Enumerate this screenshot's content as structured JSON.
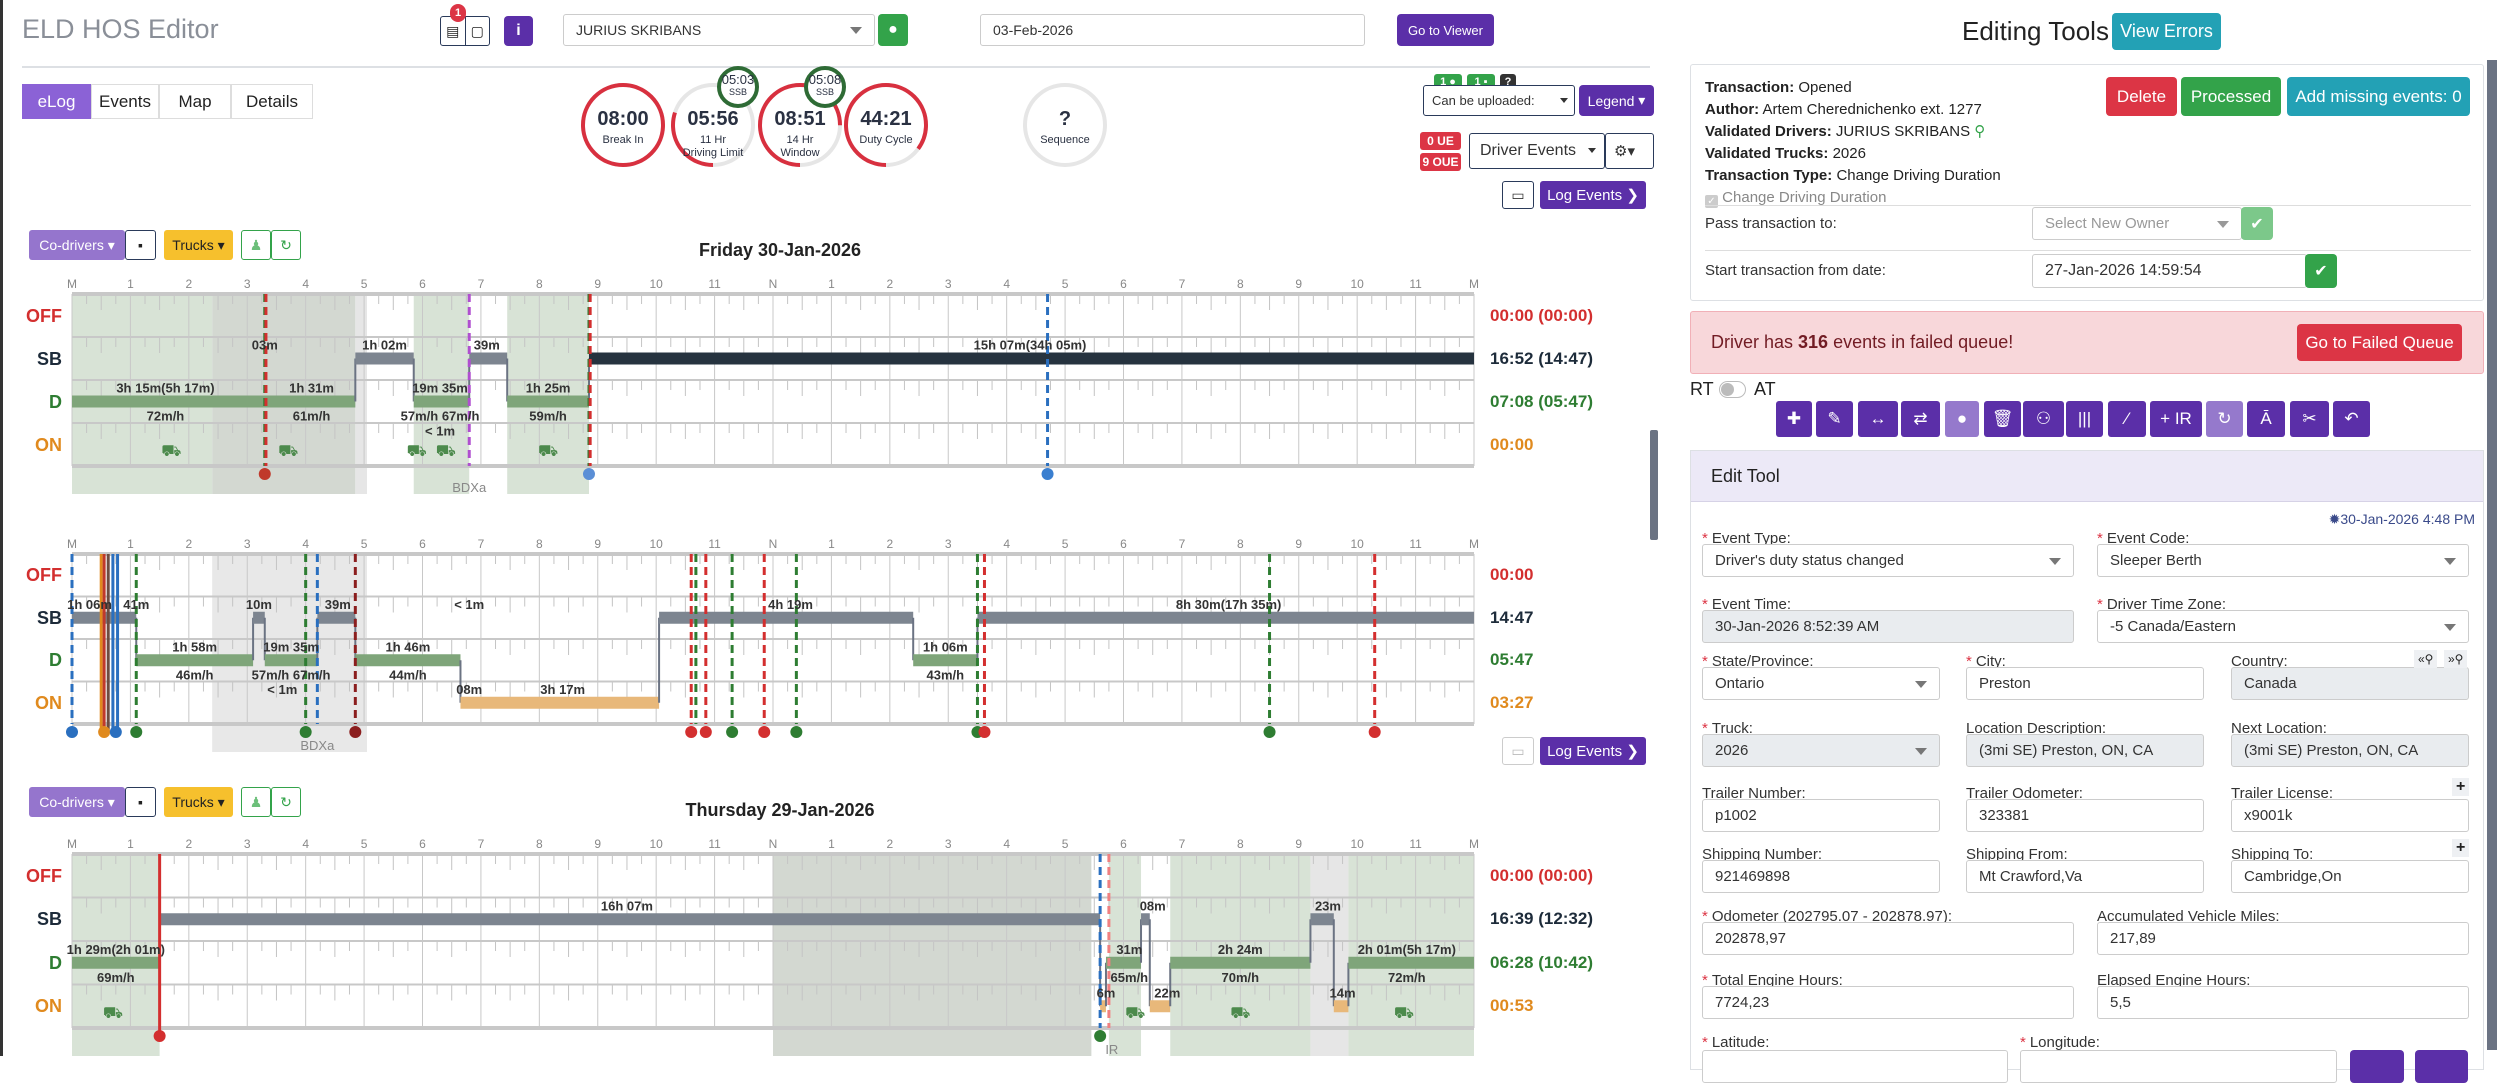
{
  "header": {
    "title": "ELD HOS Editor",
    "notif_count": "1",
    "info_icon": "i",
    "driver": "JURIUS SKRIBANS",
    "date": "03-Feb-2026",
    "go_to_viewer": "Go to Viewer"
  },
  "tabs": [
    {
      "label": "eLog",
      "active": true
    },
    {
      "label": "Events"
    },
    {
      "label": "Map"
    },
    {
      "label": "Details"
    }
  ],
  "clocks": [
    {
      "value": "08:00",
      "label": "Break In",
      "progress": 1.0
    },
    {
      "value": "05:56",
      "label": "11 Hr\nDriving Limit",
      "progress": 0.3,
      "ssb": "05:03",
      "ssb_label": "SSB"
    },
    {
      "value": "08:51",
      "label": "14 Hr\nWindow",
      "progress": 0.75,
      "ssb": "05:08",
      "ssb_label": "SSB"
    },
    {
      "value": "44:21",
      "label": "Duty Cycle",
      "progress": 0.85
    },
    {
      "value": "?",
      "label": "Sequence",
      "progress": 0
    }
  ],
  "controls": {
    "badge1": "1",
    "badge2": "1",
    "help": "?",
    "upload_select": "Can be uploaded:",
    "legend": "Legend",
    "ue": "0 UE",
    "oue": "9 OUE",
    "events_select": "Driver Events",
    "log_events": "Log Events"
  },
  "graph_toolbar": {
    "codrivers": "Co-drivers",
    "trucks": "Trucks"
  },
  "hours": [
    "M",
    "1",
    "2",
    "3",
    "4",
    "5",
    "6",
    "7",
    "8",
    "9",
    "10",
    "11",
    "N",
    "1",
    "2",
    "3",
    "4",
    "5",
    "6",
    "7",
    "8",
    "9",
    "10",
    "11",
    "M"
  ],
  "rows": [
    "OFF",
    "SB",
    "D",
    "ON"
  ],
  "logs": [
    {
      "title": "Friday 30-Jan-2026",
      "totals": [
        "00:00 (00:00)",
        "16:52 (14:47)",
        "07:08 (05:47)",
        "00:00"
      ],
      "bands": [
        {
          "from": 0,
          "to": 2.4,
          "type": "green"
        },
        {
          "from": 2.4,
          "to": 4.85,
          "type": "gray"
        },
        {
          "from": 4.85,
          "to": 5.05,
          "type": "light"
        },
        {
          "from": 5.85,
          "to": 6.8,
          "type": "green"
        },
        {
          "from": 7.45,
          "to": 8.85,
          "type": "green"
        }
      ],
      "segments": [
        {
          "status": "D",
          "from": 0,
          "to": 4.85
        },
        {
          "status": "SB",
          "from": 4.85,
          "to": 5.85
        },
        {
          "status": "D",
          "from": 5.85,
          "to": 6.8
        },
        {
          "status": "SB",
          "from": 6.8,
          "to": 7.45
        },
        {
          "status": "D",
          "from": 7.45,
          "to": 8.85
        },
        {
          "status": "SB",
          "from": 8.85,
          "to": 24,
          "current": true
        }
      ],
      "labels": [
        {
          "h": 1.6,
          "row": "D",
          "pos": "above",
          "text": "3h 15m(5h 17m)"
        },
        {
          "h": 1.6,
          "row": "D",
          "pos": "below",
          "text": "72m/h"
        },
        {
          "h": 3.3,
          "row": "SB",
          "pos": "above",
          "text": "03m"
        },
        {
          "h": 4.1,
          "row": "D",
          "pos": "above",
          "text": "1h 31m"
        },
        {
          "h": 4.1,
          "row": "D",
          "pos": "below",
          "text": "61m/h"
        },
        {
          "h": 5.35,
          "row": "SB",
          "pos": "above",
          "text": "1h 02m"
        },
        {
          "h": 6.3,
          "row": "D",
          "pos": "above",
          "text": "19m 35m"
        },
        {
          "h": 6.3,
          "row": "D",
          "pos": "below",
          "text": "57m/h 67m/h"
        },
        {
          "h": 6.3,
          "row": "ON",
          "pos": "above",
          "text": "< 1m"
        },
        {
          "h": 7.1,
          "row": "SB",
          "pos": "above",
          "text": "39m"
        },
        {
          "h": 8.15,
          "row": "D",
          "pos": "above",
          "text": "1h 25m"
        },
        {
          "h": 8.15,
          "row": "D",
          "pos": "below",
          "text": "59m/h"
        },
        {
          "h": 16.4,
          "row": "SB",
          "pos": "above",
          "text": "15h 07m(34h 05m)"
        },
        {
          "h": 6.8,
          "row": "BELOW",
          "pos": "below",
          "text": "BDXa"
        }
      ],
      "lines": [
        {
          "h": 3.3,
          "color": "#2e7d32"
        },
        {
          "h": 3.32,
          "color": "#d32f2f"
        },
        {
          "h": 6.8,
          "color": "#b04fd0"
        },
        {
          "h": 8.85,
          "color": "#2e7d32"
        },
        {
          "h": 8.87,
          "color": "#d32f2f"
        },
        {
          "h": 16.7,
          "color": "#2a6fbf"
        }
      ],
      "markers": [
        {
          "h": 3.3,
          "color": "#c0392b"
        },
        {
          "h": 8.85,
          "color": "#5b8fd6"
        },
        {
          "h": 16.7,
          "color": "#3a7fd0"
        }
      ],
      "trucks": [
        1.7,
        3.7,
        5.9,
        6.4,
        8.15
      ]
    },
    {
      "title": "",
      "totals": [
        "00:00",
        "14:47",
        "05:47",
        "03:27"
      ],
      "bands": [
        {
          "from": 2.4,
          "to": 5.05,
          "type": "lightgray"
        }
      ],
      "segments": [
        {
          "status": "SB",
          "from": 0,
          "to": 1.1
        },
        {
          "status": "D",
          "from": 1.1,
          "to": 3.1
        },
        {
          "status": "SB",
          "from": 3.1,
          "to": 3.3
        },
        {
          "status": "D",
          "from": 3.3,
          "to": 4.2
        },
        {
          "status": "SB",
          "from": 4.2,
          "to": 4.85
        },
        {
          "status": "D",
          "from": 4.85,
          "to": 6.65
        },
        {
          "status": "ON",
          "from": 6.65,
          "to": 10.05
        },
        {
          "status": "SB",
          "from": 10.05,
          "to": 14.4
        },
        {
          "status": "D",
          "from": 14.4,
          "to": 15.5
        },
        {
          "status": "SB",
          "from": 15.5,
          "to": 24
        }
      ],
      "labels": [
        {
          "h": 0.3,
          "row": "SB",
          "pos": "above",
          "text": "1h 06m"
        },
        {
          "h": 1.1,
          "row": "SB",
          "pos": "above",
          "text": "41m"
        },
        {
          "h": 2.1,
          "row": "D",
          "pos": "above",
          "text": "1h 58m"
        },
        {
          "h": 2.1,
          "row": "D",
          "pos": "below",
          "text": "46m/h"
        },
        {
          "h": 3.2,
          "row": "SB",
          "pos": "above",
          "text": "10m"
        },
        {
          "h": 3.75,
          "row": "D",
          "pos": "above",
          "text": "19m 35m"
        },
        {
          "h": 3.75,
          "row": "D",
          "pos": "below",
          "text": "57m/h 67m/h"
        },
        {
          "h": 3.6,
          "row": "ON",
          "pos": "above",
          "text": "< 1m"
        },
        {
          "h": 4.55,
          "row": "SB",
          "pos": "above",
          "text": "39m"
        },
        {
          "h": 5.75,
          "row": "D",
          "pos": "above",
          "text": "1h 46m"
        },
        {
          "h": 5.75,
          "row": "D",
          "pos": "below",
          "text": "44m/h"
        },
        {
          "h": 6.8,
          "row": "SB",
          "pos": "above",
          "text": "< 1m"
        },
        {
          "h": 6.8,
          "row": "ON",
          "pos": "above",
          "text": "08m"
        },
        {
          "h": 8.4,
          "row": "ON",
          "pos": "above",
          "text": "3h 17m"
        },
        {
          "h": 12.3,
          "row": "SB",
          "pos": "above",
          "text": "4h 19m"
        },
        {
          "h": 14.95,
          "row": "D",
          "pos": "above",
          "text": "1h 06m"
        },
        {
          "h": 14.95,
          "row": "D",
          "pos": "below",
          "text": "43m/h"
        },
        {
          "h": 19.8,
          "row": "SB",
          "pos": "above",
          "text": "8h 30m(17h 35m)"
        },
        {
          "h": 4.2,
          "row": "BELOW",
          "pos": "below",
          "text": "BDXa"
        }
      ],
      "lines": [
        {
          "h": 0,
          "color": "#2a6fbf"
        },
        {
          "h": 1.1,
          "color": "#2e7d32"
        },
        {
          "h": 4.0,
          "color": "#2e7d32"
        },
        {
          "h": 4.2,
          "color": "#2a6fbf"
        },
        {
          "h": 4.85,
          "color": "#8b1e1e"
        },
        {
          "h": 10.6,
          "color": "#d32f2f"
        },
        {
          "h": 10.68,
          "color": "#2e7d32"
        },
        {
          "h": 10.85,
          "color": "#d32f2f"
        },
        {
          "h": 11.3,
          "color": "#2e7d32"
        },
        {
          "h": 11.85,
          "color": "#d32f2f"
        },
        {
          "h": 12.4,
          "color": "#2e7d32"
        },
        {
          "h": 15.5,
          "color": "#2e7d32"
        },
        {
          "h": 15.62,
          "color": "#d32f2f"
        },
        {
          "h": 20.5,
          "color": "#2e7d32"
        },
        {
          "h": 22.3,
          "color": "#d32f2f"
        }
      ],
      "solid_lines": [
        {
          "h": 0.5,
          "color": "#e08a1e"
        },
        {
          "h": 0.55,
          "color": "#c0392b"
        },
        {
          "h": 0.62,
          "color": "#6d4c41"
        },
        {
          "h": 0.7,
          "color": "#2a6fbf"
        },
        {
          "h": 0.78,
          "color": "#2a6fbf"
        }
      ],
      "markers": [
        {
          "h": 0,
          "color": "#2a6fbf"
        },
        {
          "h": 0.55,
          "color": "#e08a1e"
        },
        {
          "h": 0.75,
          "color": "#2a6fbf"
        },
        {
          "h": 1.1,
          "color": "#2e7d32"
        },
        {
          "h": 4.0,
          "color": "#2e7d32"
        },
        {
          "h": 4.85,
          "color": "#8b1e1e"
        },
        {
          "h": 10.6,
          "color": "#d32f2f"
        },
        {
          "h": 10.85,
          "color": "#d32f2f"
        },
        {
          "h": 11.3,
          "color": "#2e7d32"
        },
        {
          "h": 11.85,
          "color": "#d32f2f"
        },
        {
          "h": 12.4,
          "color": "#2e7d32"
        },
        {
          "h": 15.5,
          "color": "#2e7d32"
        },
        {
          "h": 15.62,
          "color": "#d32f2f"
        },
        {
          "h": 20.5,
          "color": "#2e7d32"
        },
        {
          "h": 22.3,
          "color": "#d32f2f"
        }
      ],
      "trucks": []
    },
    {
      "title": "Thursday 29-Jan-2026",
      "totals": [
        "00:00 (00:00)",
        "16:39 (12:32)",
        "06:28 (10:42)",
        "00:53"
      ],
      "bands": [
        {
          "from": 0,
          "to": 1.5,
          "type": "green"
        },
        {
          "from": 12,
          "to": 17.45,
          "type": "gray"
        },
        {
          "from": 17.75,
          "to": 18.3,
          "type": "green"
        },
        {
          "from": 18.8,
          "to": 21.2,
          "type": "green"
        },
        {
          "from": 21.2,
          "to": 21.85,
          "type": "light"
        },
        {
          "from": 21.85,
          "to": 24,
          "type": "green"
        }
      ],
      "segments": [
        {
          "status": "D",
          "from": 0,
          "to": 1.5
        },
        {
          "status": "SB",
          "from": 1.5,
          "to": 17.6
        },
        {
          "status": "ON",
          "from": 17.6,
          "to": 17.7
        },
        {
          "status": "D",
          "from": 17.7,
          "to": 18.3
        },
        {
          "status": "SB",
          "from": 18.3,
          "to": 18.45
        },
        {
          "status": "ON",
          "from": 18.45,
          "to": 18.8
        },
        {
          "status": "D",
          "from": 18.8,
          "to": 21.2
        },
        {
          "status": "SB",
          "from": 21.2,
          "to": 21.6
        },
        {
          "status": "ON",
          "from": 21.6,
          "to": 21.85
        },
        {
          "status": "D",
          "from": 21.85,
          "to": 24
        }
      ],
      "labels": [
        {
          "h": 0.75,
          "row": "D",
          "pos": "above",
          "text": "1h 29m(2h 01m)"
        },
        {
          "h": 0.75,
          "row": "D",
          "pos": "below",
          "text": "69m/h"
        },
        {
          "h": 9.5,
          "row": "SB",
          "pos": "above",
          "text": "16h 07m"
        },
        {
          "h": 17.7,
          "row": "ON",
          "pos": "above",
          "text": "6m"
        },
        {
          "h": 18.1,
          "row": "D",
          "pos": "above",
          "text": "31m"
        },
        {
          "h": 18.1,
          "row": "D",
          "pos": "below",
          "text": "65m/h"
        },
        {
          "h": 18.5,
          "row": "SB",
          "pos": "above",
          "text": "08m"
        },
        {
          "h": 18.75,
          "row": "ON",
          "pos": "above",
          "text": "22m"
        },
        {
          "h": 20,
          "row": "D",
          "pos": "above",
          "text": "2h 24m"
        },
        {
          "h": 20,
          "row": "D",
          "pos": "below",
          "text": "70m/h"
        },
        {
          "h": 21.5,
          "row": "SB",
          "pos": "above",
          "text": "23m"
        },
        {
          "h": 21.75,
          "row": "ON",
          "pos": "above",
          "text": "14m"
        },
        {
          "h": 22.85,
          "row": "D",
          "pos": "above",
          "text": "2h 01m(5h 17m)"
        },
        {
          "h": 22.85,
          "row": "D",
          "pos": "below",
          "text": "72m/h"
        },
        {
          "h": 17.8,
          "row": "BELOW",
          "pos": "below",
          "text": "IR"
        }
      ],
      "lines": [
        {
          "h": 17.6,
          "color": "#2a6fbf"
        },
        {
          "h": 17.75,
          "color": "#f08080"
        }
      ],
      "solid_lines": [
        {
          "h": 1.5,
          "color": "#d32f2f"
        }
      ],
      "markers": [
        {
          "h": 1.5,
          "color": "#d32f2f"
        },
        {
          "h": 17.6,
          "color": "#2e7d32"
        }
      ],
      "trucks": [
        0.7,
        18.2,
        20.0,
        22.8
      ]
    }
  ],
  "editing": {
    "title": "Editing Tools",
    "view_errors": "View Errors",
    "transaction_label": "Transaction:",
    "transaction": "Opened",
    "author_label": "Author:",
    "author": "Artem Cherednichenko ext. 1277",
    "drivers_label": "Validated Drivers:",
    "drivers": "JURIUS SKRIBANS",
    "trucks_label": "Validated Trucks:",
    "trucks": "2026",
    "type_label": "Transaction Type:",
    "type": "Change Driving Duration",
    "checkbox_label": "Change Driving Duration",
    "delete": "Delete",
    "processed": "Processed",
    "add_missing": "Add missing events: 0",
    "pass_label": "Pass transaction to:",
    "pass_placeholder": "Select New Owner",
    "start_label": "Start transaction from date:",
    "start_value": "27-Jan-2026 14:59:54",
    "alert_pre": "Driver has ",
    "alert_count": "316",
    "alert_post": " events in failed queue!",
    "failed_queue": "Go to Failed Queue",
    "rt": "RT",
    "at": "AT",
    "tools": [
      "✚",
      "✎",
      "↔",
      "⇄",
      "●",
      "🗑",
      "⚇",
      "|||",
      "⁄",
      "+ IR",
      "↻",
      "Ā",
      "✂",
      "↶"
    ]
  },
  "edit_tool": {
    "title": "Edit Tool",
    "timestamp": "30-Jan-2026 4:48 PM",
    "event_type_label": "Event Type:",
    "event_type": "Driver's duty status changed",
    "event_code_label": "Event Code:",
    "event_code": "Sleeper Berth",
    "event_time_label": "Event Time:",
    "event_time": "30-Jan-2026 8:52:39 AM",
    "tz_label": "Driver Time Zone:",
    "tz": "-5 Canada/Eastern",
    "state_label": "State/Province:",
    "state": "Ontario",
    "city_label": "City:",
    "city": "Preston",
    "country_label": "Country:",
    "country": "Canada",
    "loc_prev": "«⚲",
    "loc_next": "»⚲",
    "truck_label": "Truck:",
    "truck": "2026",
    "locdesc_label": "Location Description:",
    "locdesc": "(3mi SE) Preston, ON, CA",
    "nextloc_label": "Next Location:",
    "nextloc": "(3mi SE) Preston, ON, CA",
    "trailer_num_label": "Trailer Number:",
    "trailer_num": "p1002",
    "trailer_odo_label": "Trailer Odometer:",
    "trailer_odo": "323381",
    "trailer_lic_label": "Trailer License:",
    "trailer_lic": "x9001k",
    "ship_num_label": "Shipping Number:",
    "ship_num": "921469898",
    "ship_from_label": "Shipping From:",
    "ship_from": "Mt Crawford,Va",
    "ship_to_label": "Shipping To:",
    "ship_to": "Cambridge,On",
    "odo_label": "Odometer (202795.07 - 202878.97):",
    "odo": "202878,97",
    "acc_miles_label": "Accumulated Vehicle Miles:",
    "acc_miles": "217,89",
    "eng_hours_label": "Total Engine Hours:",
    "eng_hours": "7724,23",
    "elapsed_label": "Elapsed Engine Hours:",
    "elapsed": "5,5",
    "lat_label": "Latitude:",
    "lon_label": "Longitude:",
    "plus": "+"
  }
}
